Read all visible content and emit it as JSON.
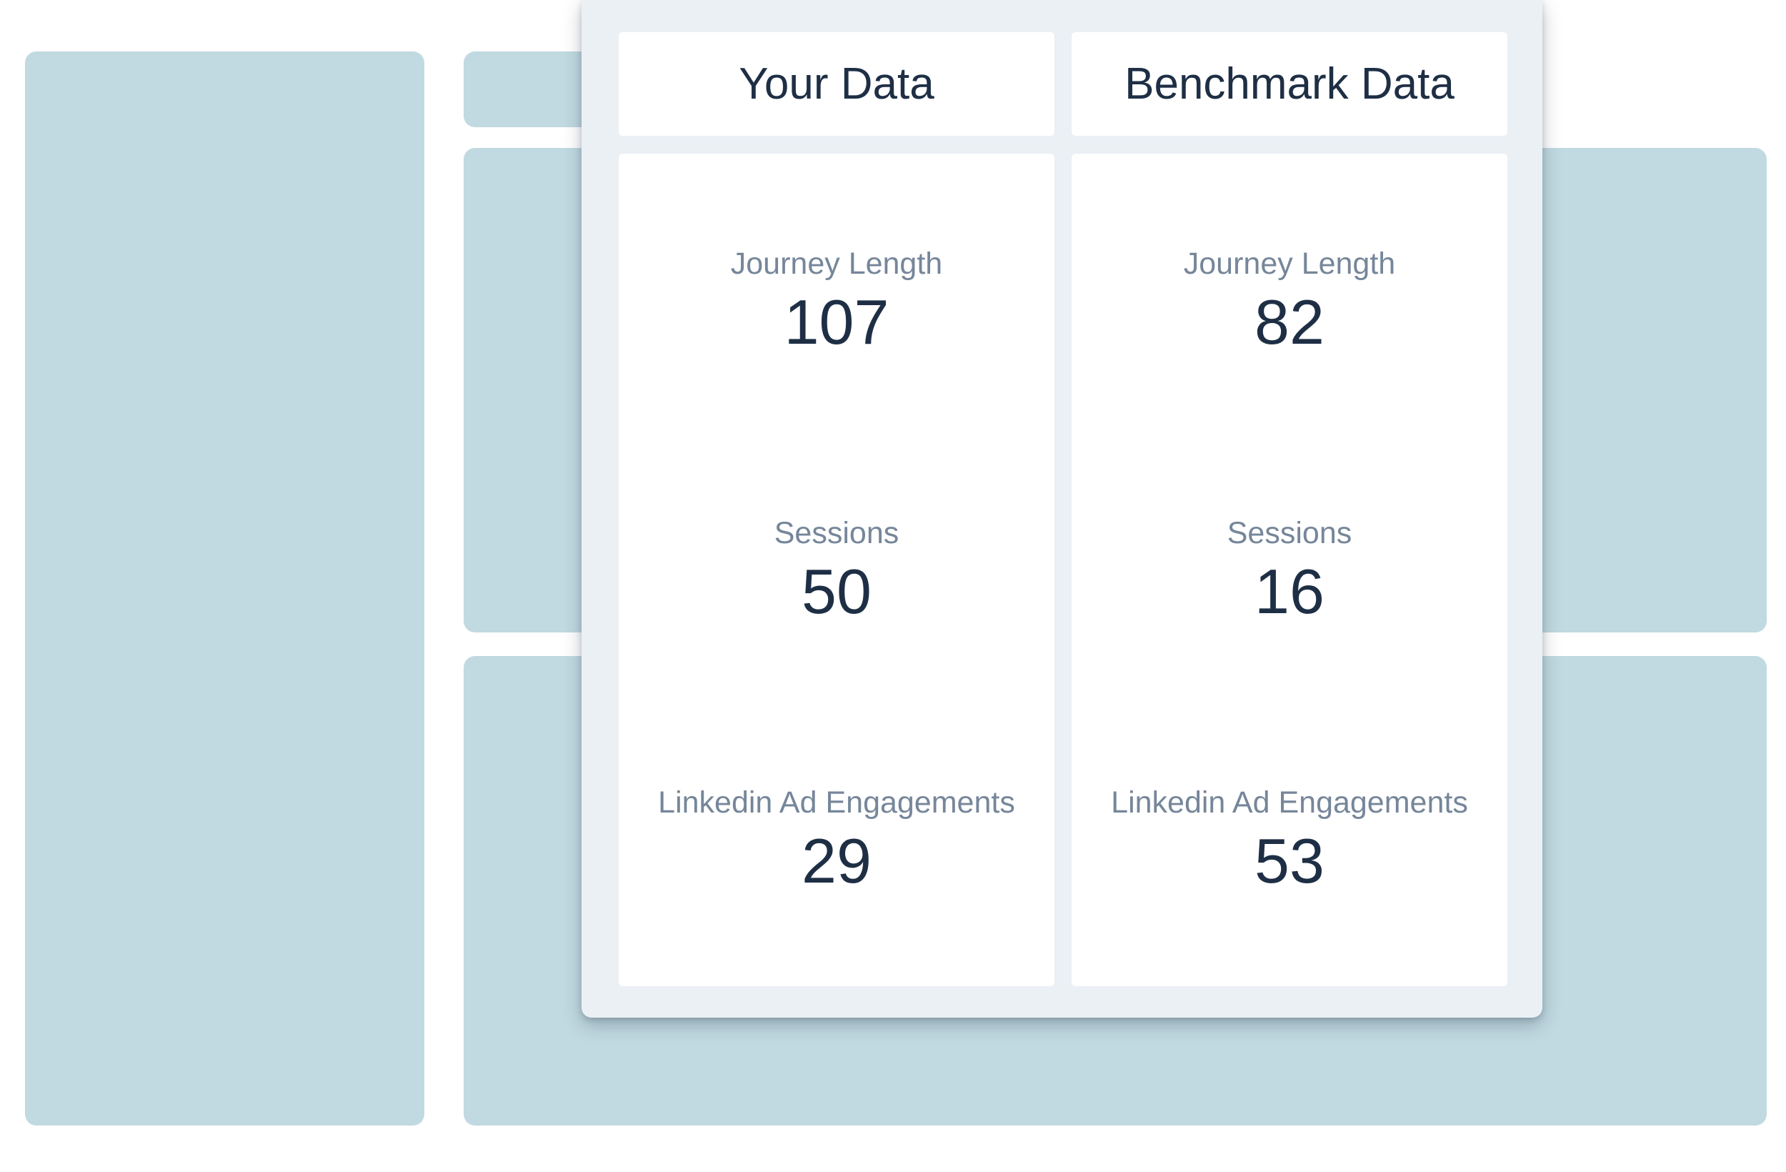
{
  "colors": {
    "background_blocks": "#c1d9e1",
    "panel": "#ebf0f5",
    "card": "#ffffff",
    "heading_text": "#1e2f45",
    "label_text": "#76869a"
  },
  "comparison": {
    "your_data": {
      "title": "Your Data",
      "metrics": [
        {
          "label": "Journey Length",
          "value": "107"
        },
        {
          "label": "Sessions",
          "value": "50"
        },
        {
          "label": "Linkedin Ad Engagements",
          "value": "29"
        }
      ]
    },
    "benchmark_data": {
      "title": "Benchmark Data",
      "metrics": [
        {
          "label": "Journey Length",
          "value": "82"
        },
        {
          "label": "Sessions",
          "value": "16"
        },
        {
          "label": "Linkedin Ad Engagements",
          "value": "53"
        }
      ]
    }
  }
}
